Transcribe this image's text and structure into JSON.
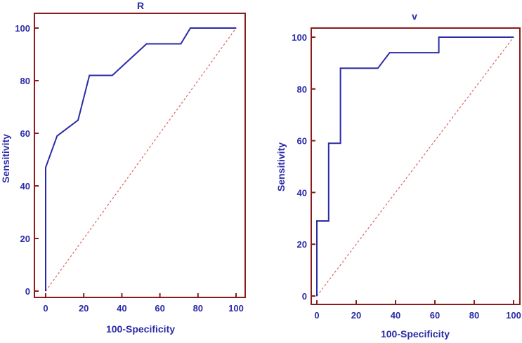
{
  "chart_data": [
    {
      "type": "line",
      "title": "R",
      "xlabel": "100-Specificity",
      "ylabel": "Sensitivity",
      "xlim": [
        0,
        100
      ],
      "ylim": [
        0,
        100
      ],
      "xticks": [
        0,
        20,
        40,
        60,
        80,
        100
      ],
      "yticks": [
        0,
        20,
        40,
        60,
        80,
        100
      ],
      "grid": false,
      "series": [
        {
          "x": [
            0,
            0,
            0,
            6,
            17,
            23,
            35,
            53,
            71,
            76,
            100
          ],
          "y": [
            0,
            47,
            47,
            59,
            65,
            82,
            82,
            94,
            94,
            100,
            100
          ]
        }
      ],
      "reference_line": {
        "x": [
          0,
          100
        ],
        "y": [
          0,
          100
        ]
      },
      "colors": {
        "curve": "#2b2ba8",
        "reference": "#e06060",
        "axis": "#8b1a1a",
        "text": "#2b2ba8"
      }
    },
    {
      "type": "line",
      "title": "v",
      "xlabel": "100-Specificity",
      "ylabel": "Sensitivity",
      "xlim": [
        0,
        100
      ],
      "ylim": [
        0,
        100
      ],
      "xticks": [
        0,
        20,
        40,
        60,
        80,
        100
      ],
      "yticks": [
        0,
        20,
        40,
        60,
        80,
        100
      ],
      "grid": false,
      "series": [
        {
          "x": [
            0,
            0,
            6,
            6,
            12,
            12,
            31,
            37,
            62,
            62,
            100
          ],
          "y": [
            0,
            29,
            29,
            59,
            59,
            88,
            88,
            94,
            94,
            100,
            100
          ]
        }
      ],
      "reference_line": {
        "x": [
          0,
          100
        ],
        "y": [
          0,
          100
        ]
      },
      "colors": {
        "curve": "#2b2ba8",
        "reference": "#e06060",
        "axis": "#8b1a1a",
        "text": "#2b2ba8"
      }
    }
  ]
}
